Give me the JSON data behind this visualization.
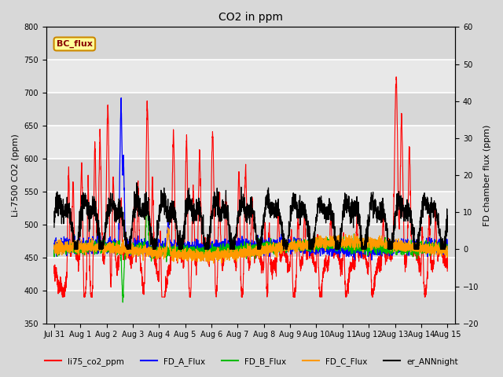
{
  "title": "CO2 in ppm",
  "ylabel_left": "Li-7500 CO2 (ppm)",
  "ylabel_right": "FD chamber flux (ppm)",
  "ylim_left": [
    350,
    800
  ],
  "ylim_right": [
    -20,
    60
  ],
  "yticks_left": [
    350,
    400,
    450,
    500,
    550,
    600,
    650,
    700,
    750,
    800
  ],
  "yticks_right": [
    -20,
    -10,
    0,
    10,
    20,
    30,
    40,
    50,
    60
  ],
  "bg_color": "#d8d8d8",
  "plot_bg_color": "#e8e8e8",
  "stripe_color": "#cccccc",
  "legend_box_facecolor": "#ffff99",
  "legend_box_edgecolor": "#cc8800",
  "series": {
    "li75_co2_ppm": {
      "color": "#ff0000",
      "lw": 0.8
    },
    "FD_A_Flux": {
      "color": "#0000ff",
      "lw": 0.9
    },
    "FD_B_Flux": {
      "color": "#00bb00",
      "lw": 0.9
    },
    "FD_C_Flux": {
      "color": "#ff9900",
      "lw": 0.9
    },
    "er_ANNnight": {
      "color": "#000000",
      "lw": 0.9
    }
  },
  "xstart_day": -0.3,
  "xend_day": 15.3,
  "xtick_labels": [
    "Jul 31",
    "Aug 1",
    "Aug 2",
    "Aug 3",
    "Aug 4",
    "Aug 5",
    "Aug 6",
    "Aug 7",
    "Aug 8",
    "Aug 9",
    "Aug 10",
    "Aug 11",
    "Aug 12",
    "Aug 13",
    "Aug 14",
    "Aug 15"
  ],
  "annotation_text": "BC_flux",
  "annotation_color": "#880000",
  "annotation_fontsize": 8
}
